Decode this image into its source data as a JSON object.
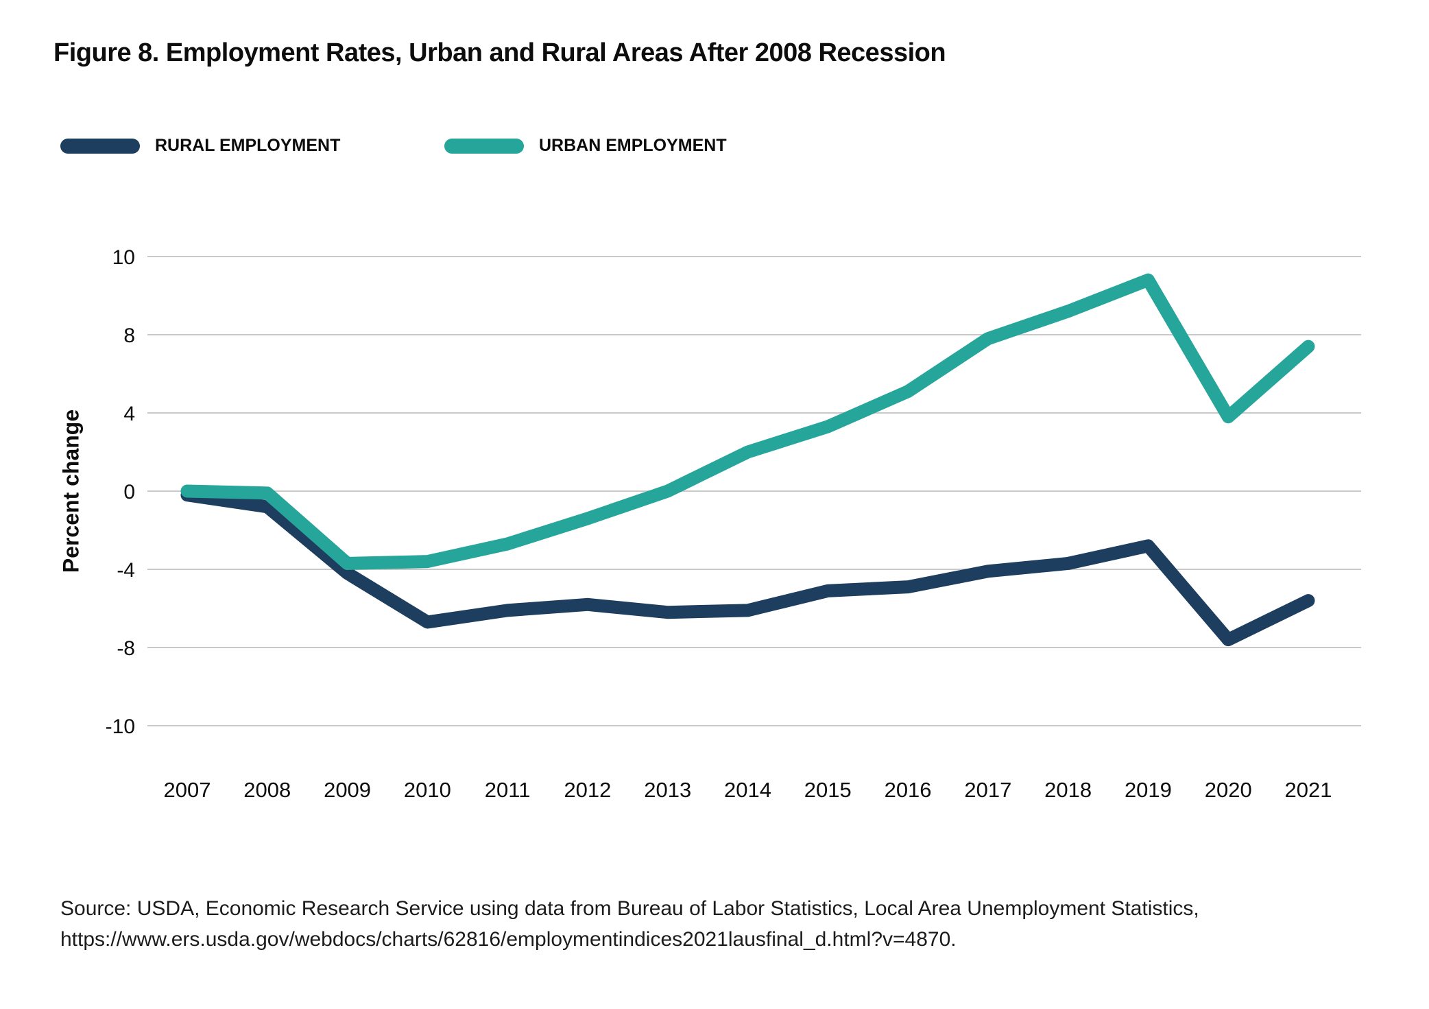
{
  "title": "Figure 8. Employment Rates, Urban and Rural Areas After 2008 Recession",
  "legend": [
    {
      "label": "RURAL EMPLOYMENT",
      "color": "#1d3e5e"
    },
    {
      "label": "URBAN EMPLOYMENT",
      "color": "#26a69a"
    }
  ],
  "chart_data": {
    "type": "line",
    "title": "Figure 8. Employment Rates, Urban and Rural Areas After 2008 Recession",
    "xlabel": "",
    "ylabel": "Percent change",
    "x": [
      2007,
      2008,
      2009,
      2010,
      2011,
      2012,
      2013,
      2014,
      2015,
      2016,
      2017,
      2018,
      2019,
      2020,
      2021
    ],
    "series": [
      {
        "name": "RURAL EMPLOYMENT",
        "color": "#1d3e5e",
        "values": [
          -0.2,
          -0.8,
          -4.2,
          -6.7,
          -6.1,
          -5.8,
          -6.2,
          -6.1,
          -5.1,
          -4.9,
          -4.1,
          -3.7,
          -2.8,
          -7.6,
          -5.6
        ]
      },
      {
        "name": "URBAN EMPLOYMENT",
        "color": "#26a69a",
        "values": [
          0.0,
          -0.1,
          -3.7,
          -3.6,
          -2.7,
          -1.4,
          0.0,
          2.0,
          3.3,
          5.1,
          7.8,
          8.6,
          9.4,
          3.8,
          7.4
        ]
      }
    ],
    "yticks": [
      10,
      8,
      4,
      0,
      -4,
      -8,
      -10
    ],
    "yticks_equally_spaced": true,
    "ylim_note": "axis shows ticks 10,8,4,0,-4,-8,-10 at equal pixel spacing",
    "grid": true,
    "legend_position": "top-left",
    "grid_color": "#c9c9c9",
    "tick_label_color": "#0d0d0d"
  },
  "source": {
    "line1": "Source: USDA, Economic Research Service using data from Bureau of Labor Statistics, Local Area Unemployment Statistics,",
    "line2": "https://www.ers.usda.gov/webdocs/charts/62816/employmentindices2021lausfinal_d.html?v=4870."
  }
}
